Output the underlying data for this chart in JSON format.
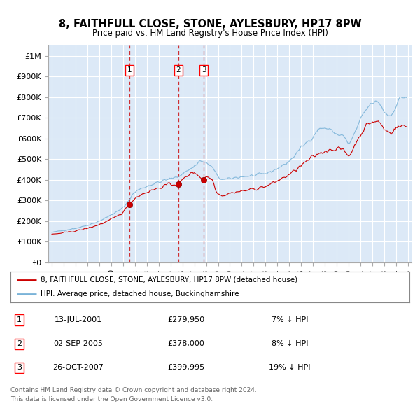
{
  "title": "8, FAITHFULL CLOSE, STONE, AYLESBURY, HP17 8PW",
  "subtitle": "Price paid vs. HM Land Registry's House Price Index (HPI)",
  "background_color": "#ffffff",
  "plot_bg_color": "#dce9f7",
  "grid_color": "#ffffff",
  "hpi_color": "#7ab3d8",
  "price_color": "#cc0000",
  "dashed_line_color": "#cc0000",
  "transactions": [
    {
      "num": 1,
      "date_label": "13-JUL-2001",
      "date_x": 2001.53,
      "price": 279950,
      "hpi_pct": "7% ↓ HPI"
    },
    {
      "num": 2,
      "date_label": "02-SEP-2005",
      "date_x": 2005.67,
      "price": 378000,
      "hpi_pct": "8% ↓ HPI"
    },
    {
      "num": 3,
      "date_label": "26-OCT-2007",
      "date_x": 2007.81,
      "price": 399995,
      "hpi_pct": "19% ↓ HPI"
    }
  ],
  "legend_line1": "8, FAITHFULL CLOSE, STONE, AYLESBURY, HP17 8PW (detached house)",
  "legend_line2": "HPI: Average price, detached house, Buckinghamshire",
  "footer1": "Contains HM Land Registry data © Crown copyright and database right 2024.",
  "footer2": "This data is licensed under the Open Government Licence v3.0.",
  "ylim": [
    0,
    1050000
  ],
  "yticks": [
    0,
    100000,
    200000,
    300000,
    400000,
    500000,
    600000,
    700000,
    800000,
    900000,
    1000000
  ],
  "ytick_labels": [
    "£0",
    "£100K",
    "£200K",
    "£300K",
    "£400K",
    "£500K",
    "£600K",
    "£700K",
    "£800K",
    "£900K",
    "£1M"
  ],
  "xlim_start": 1994.7,
  "xlim_end": 2025.3
}
